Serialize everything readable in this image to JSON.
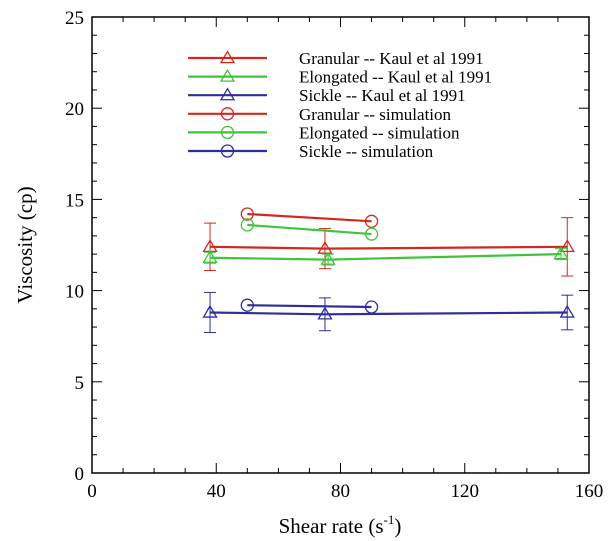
{
  "chart_data": {
    "type": "line",
    "xlabel": "Shear rate (s",
    "xlabel_sup": "-1",
    "xlabel_close": ")",
    "ylabel": "Viscosity (cp)",
    "xlim": [
      0,
      160
    ],
    "ylim": [
      0,
      25
    ],
    "xticks": [
      0,
      40,
      80,
      120,
      160
    ],
    "yticks": [
      0,
      5,
      10,
      15,
      20,
      25
    ],
    "legend_position": "top-center",
    "grid": false,
    "series": [
      {
        "name": "Granular  -- Kaul et al 1991",
        "marker": "triangle",
        "color": "#d02a20",
        "points": [
          {
            "x": 38,
            "y": 12.4,
            "err": 1.3
          },
          {
            "x": 75,
            "y": 12.3,
            "err": 1.1
          },
          {
            "x": 153,
            "y": 12.4,
            "err": 1.6
          }
        ]
      },
      {
        "name": "Elongated  -- Kaul et al 1991",
        "marker": "triangle",
        "color": "#3ec43e",
        "points": [
          {
            "x": 38,
            "y": 11.8,
            "err": 0.3
          },
          {
            "x": 76,
            "y": 11.7,
            "err": 0.3
          },
          {
            "x": 151,
            "y": 12.0,
            "err": 0.3
          }
        ]
      },
      {
        "name": "Sickle  -- Kaul et al 1991",
        "marker": "triangle",
        "color": "#2e2e9e",
        "points": [
          {
            "x": 38,
            "y": 8.8,
            "err": 1.1
          },
          {
            "x": 75,
            "y": 8.7,
            "err": 0.9
          },
          {
            "x": 153,
            "y": 8.8,
            "err": 0.95
          }
        ]
      },
      {
        "name": "Granular --  simulation",
        "marker": "circle",
        "color": "#d02a20",
        "points": [
          {
            "x": 50,
            "y": 14.2
          },
          {
            "x": 90,
            "y": 13.8
          }
        ]
      },
      {
        "name": "Elongated  -- simulation",
        "marker": "circle",
        "color": "#3ec43e",
        "points": [
          {
            "x": 50,
            "y": 13.6
          },
          {
            "x": 90,
            "y": 13.1
          }
        ]
      },
      {
        "name": "Sickle -- simulation",
        "marker": "circle",
        "color": "#2e2e9e",
        "points": [
          {
            "x": 50,
            "y": 9.2
          },
          {
            "x": 90,
            "y": 9.1
          }
        ]
      }
    ]
  }
}
